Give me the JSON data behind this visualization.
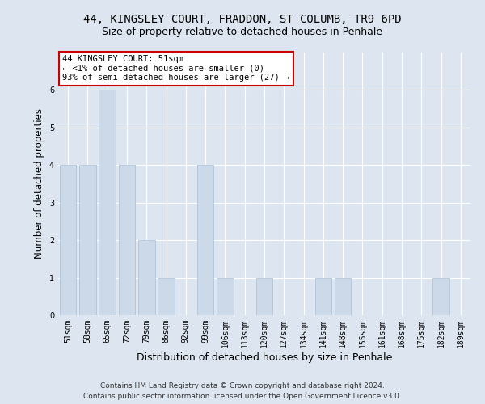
{
  "title_line1": "44, KINGSLEY COURT, FRADDON, ST COLUMB, TR9 6PD",
  "title_line2": "Size of property relative to detached houses in Penhale",
  "xlabel": "Distribution of detached houses by size in Penhale",
  "ylabel": "Number of detached properties",
  "categories": [
    "51sqm",
    "58sqm",
    "65sqm",
    "72sqm",
    "79sqm",
    "86sqm",
    "92sqm",
    "99sqm",
    "106sqm",
    "113sqm",
    "120sqm",
    "127sqm",
    "134sqm",
    "141sqm",
    "148sqm",
    "155sqm",
    "161sqm",
    "168sqm",
    "175sqm",
    "182sqm",
    "189sqm"
  ],
  "values": [
    4,
    4,
    6,
    4,
    2,
    1,
    0,
    4,
    1,
    0,
    1,
    0,
    0,
    1,
    1,
    0,
    0,
    0,
    0,
    1,
    0
  ],
  "bar_color": "#ccd9e8",
  "bar_edgecolor": "#aabdd4",
  "annotation_text": "44 KINGSLEY COURT: 51sqm\n← <1% of detached houses are smaller (0)\n93% of semi-detached houses are larger (27) →",
  "annotation_box_facecolor": "#ffffff",
  "annotation_box_edgecolor": "#cc0000",
  "ylim": [
    0,
    7
  ],
  "yticks": [
    0,
    1,
    2,
    3,
    4,
    5,
    6
  ],
  "background_color": "#dde6f0",
  "plot_background": "#dde6f0",
  "footer_line1": "Contains HM Land Registry data © Crown copyright and database right 2024.",
  "footer_line2": "Contains public sector information licensed under the Open Government Licence v3.0.",
  "title_fontsize": 10,
  "subtitle_fontsize": 9,
  "xlabel_fontsize": 9,
  "ylabel_fontsize": 8.5,
  "tick_fontsize": 7,
  "annotation_fontsize": 7.5,
  "footer_fontsize": 6.5
}
